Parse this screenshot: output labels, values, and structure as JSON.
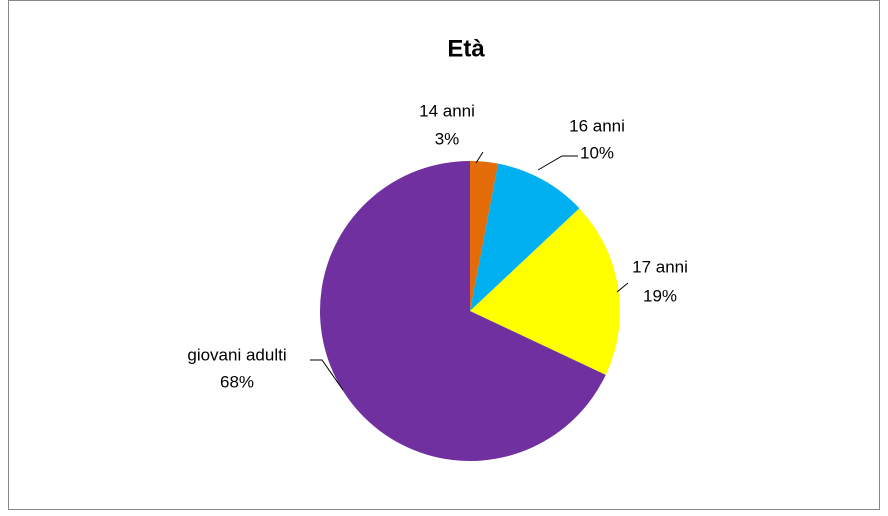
{
  "chart_data": {
    "type": "pie",
    "title": "Età",
    "categories": [
      "14 anni",
      "16 anni",
      "17 anni",
      "giovani adulti"
    ],
    "values": [
      3,
      10,
      19,
      68
    ],
    "value_labels": [
      "3%",
      "10%",
      "19%",
      "68%"
    ],
    "colors": [
      "#e36c09",
      "#00b0f0",
      "#ffff00",
      "#7030a0"
    ]
  }
}
